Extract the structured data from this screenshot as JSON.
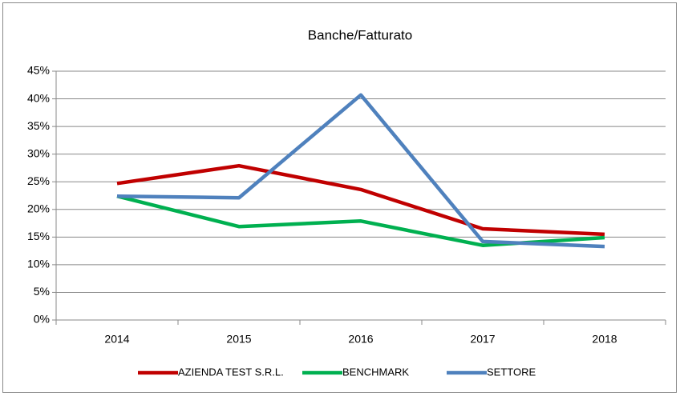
{
  "chart_data": {
    "type": "line",
    "title": "Banche/Fatturato",
    "categories": [
      "2014",
      "2015",
      "2016",
      "2017",
      "2018"
    ],
    "series": [
      {
        "name": "AZIENDA TEST S.R.L.",
        "color": "#c00000",
        "values": [
          24.7,
          27.9,
          23.6,
          16.5,
          15.5
        ]
      },
      {
        "name": "BENCHMARK",
        "color": "#00b050",
        "values": [
          22.4,
          16.9,
          17.9,
          13.5,
          14.9
        ]
      },
      {
        "name": "SETTORE",
        "color": "#4f81bd",
        "values": [
          22.4,
          22.1,
          40.7,
          14.2,
          13.3
        ]
      }
    ],
    "ylim": [
      0,
      45
    ],
    "yticks": [
      {
        "value": 0,
        "label": "0%"
      },
      {
        "value": 5,
        "label": "5%"
      },
      {
        "value": 10,
        "label": "10%"
      },
      {
        "value": 15,
        "label": "15%"
      },
      {
        "value": 20,
        "label": "20%"
      },
      {
        "value": 25,
        "label": "25%"
      },
      {
        "value": 30,
        "label": "30%"
      },
      {
        "value": 35,
        "label": "35%"
      },
      {
        "value": 40,
        "label": "40%"
      },
      {
        "value": 45,
        "label": "45%"
      }
    ],
    "grid": true,
    "legend": "bottom"
  }
}
